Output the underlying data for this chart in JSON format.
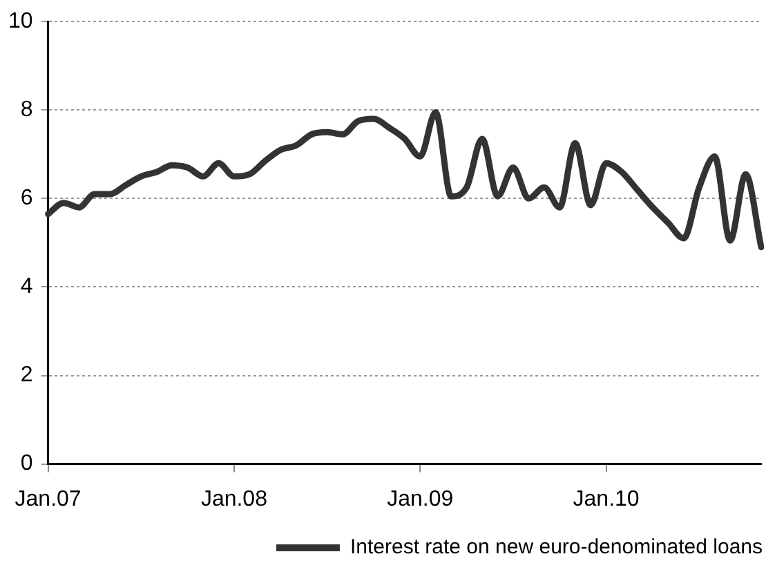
{
  "chart_data": {
    "type": "line",
    "categories": [
      "Jan.07",
      null,
      null,
      null,
      null,
      null,
      null,
      null,
      null,
      null,
      null,
      null,
      "Jan.08",
      null,
      null,
      null,
      null,
      null,
      null,
      null,
      null,
      null,
      null,
      null,
      "Jan.09",
      null,
      null,
      null,
      null,
      null,
      null,
      null,
      null,
      null,
      null,
      null,
      "Jan.10",
      null,
      null,
      null,
      null,
      null,
      null,
      null,
      null,
      null,
      null
    ],
    "series": [
      {
        "name": "Interest rate on new euro-denominated loans",
        "color": "#333333",
        "values": [
          5.65,
          5.9,
          5.8,
          6.1,
          6.1,
          6.3,
          6.5,
          6.6,
          6.75,
          6.7,
          6.5,
          6.8,
          6.5,
          6.55,
          6.85,
          7.1,
          7.2,
          7.45,
          7.5,
          7.45,
          7.75,
          7.8,
          7.6,
          7.35,
          6.95,
          7.95,
          6.05,
          6.25,
          7.35,
          6.05,
          6.7,
          6.0,
          6.25,
          5.8,
          7.25,
          5.85,
          6.8,
          6.6,
          6.2,
          5.8,
          5.45,
          5.1,
          6.25,
          6.95,
          5.05,
          6.55,
          4.9
        ]
      }
    ],
    "ylim": [
      0,
      10
    ],
    "yticks": [
      0,
      2,
      4,
      6,
      8,
      10
    ],
    "grid": "y",
    "legend": "bottom",
    "marker": "none",
    "line_style": "solid"
  }
}
